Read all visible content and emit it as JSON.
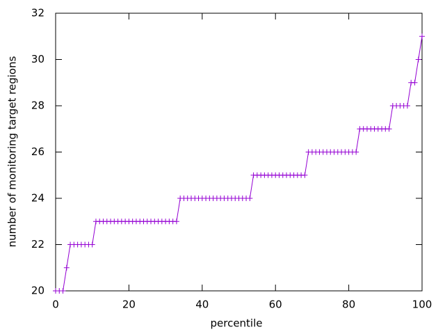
{
  "chart_data": {
    "type": "line",
    "xlabel": "percentile",
    "ylabel": "number of monitoring target regions",
    "x": [
      0,
      1,
      2,
      3,
      4,
      5,
      6,
      7,
      8,
      9,
      10,
      11,
      12,
      13,
      14,
      15,
      16,
      17,
      18,
      19,
      20,
      21,
      22,
      23,
      24,
      25,
      26,
      27,
      28,
      29,
      30,
      31,
      32,
      33,
      34,
      35,
      36,
      37,
      38,
      39,
      40,
      41,
      42,
      43,
      44,
      45,
      46,
      47,
      48,
      49,
      50,
      51,
      52,
      53,
      54,
      55,
      56,
      57,
      58,
      59,
      60,
      61,
      62,
      63,
      64,
      65,
      66,
      67,
      68,
      69,
      70,
      71,
      72,
      73,
      74,
      75,
      76,
      77,
      78,
      79,
      80,
      81,
      82,
      83,
      84,
      85,
      86,
      87,
      88,
      89,
      90,
      91,
      92,
      93,
      94,
      95,
      96,
      97,
      98,
      99,
      100
    ],
    "values": [
      20,
      20,
      20,
      21,
      22,
      22,
      22,
      22,
      22,
      22,
      22,
      23,
      23,
      23,
      23,
      23,
      23,
      23,
      23,
      23,
      23,
      23,
      23,
      23,
      23,
      23,
      23,
      23,
      23,
      23,
      23,
      23,
      23,
      23,
      24,
      24,
      24,
      24,
      24,
      24,
      24,
      24,
      24,
      24,
      24,
      24,
      24,
      24,
      24,
      24,
      24,
      24,
      24,
      24,
      25,
      25,
      25,
      25,
      25,
      25,
      25,
      25,
      25,
      25,
      25,
      25,
      25,
      25,
      25,
      26,
      26,
      26,
      26,
      26,
      26,
      26,
      26,
      26,
      26,
      26,
      26,
      26,
      26,
      27,
      27,
      27,
      27,
      27,
      27,
      27,
      27,
      27,
      28,
      28,
      28,
      28,
      28,
      29,
      29,
      30,
      31
    ],
    "color": "#9400d3",
    "marker": "plus",
    "xlim": [
      0,
      100
    ],
    "xticks": [
      0,
      20,
      40,
      60,
      80,
      100
    ],
    "ylim": [
      20,
      32
    ],
    "yticks": [
      20,
      22,
      24,
      26,
      28,
      30,
      32
    ]
  }
}
